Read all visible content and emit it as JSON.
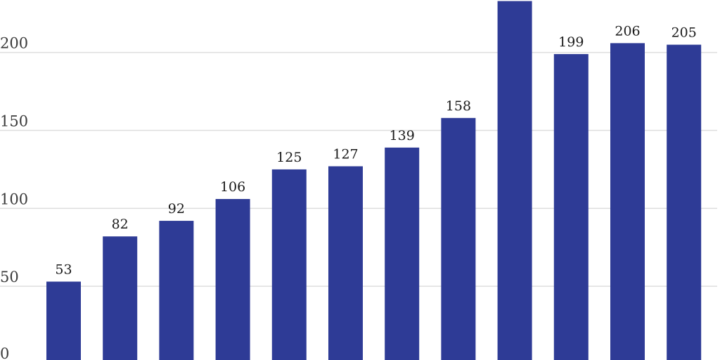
{
  "chart_data": {
    "type": "bar",
    "categories": [
      "",
      "",
      "",
      "",
      "",
      "",
      "",
      "",
      "",
      "",
      "",
      ""
    ],
    "values": [
      53,
      82,
      92,
      106,
      125,
      127,
      139,
      158,
      233,
      199,
      206,
      205
    ],
    "value_labels": [
      "53",
      "82",
      "92",
      "106",
      "125",
      "127",
      "139",
      "158",
      "",
      "199",
      "206",
      "205"
    ],
    "yticks": [
      0,
      50,
      100,
      150,
      200
    ],
    "ylim": [
      0,
      230
    ],
    "title": "",
    "xlabel": "",
    "ylabel": "",
    "grid": true,
    "bar_color": "#2e3b96"
  }
}
